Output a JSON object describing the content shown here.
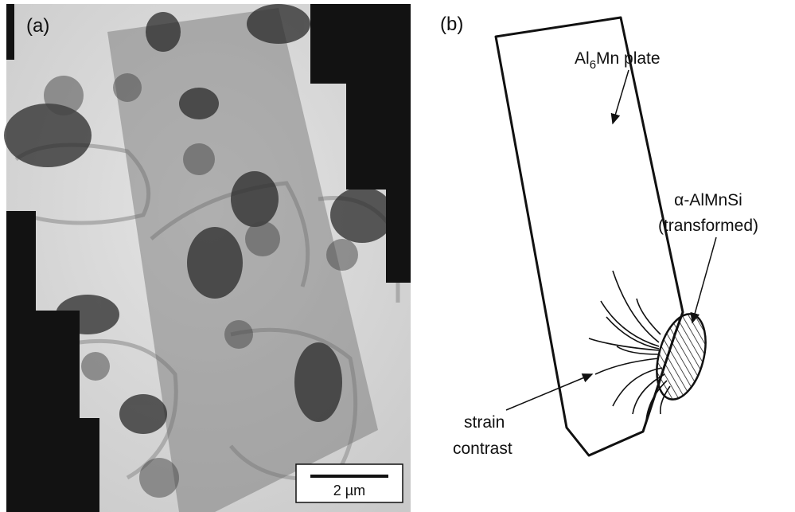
{
  "panel_a": {
    "label": "(a)",
    "scale_bar": "2 µm"
  },
  "panel_b": {
    "label": "(b)",
    "plate_label": {
      "base": "Al",
      "sub": "6",
      "rest": "Mn plate"
    },
    "phase_label": [
      "α-AlMnSi",
      "(transformed)"
    ],
    "strain_label": [
      "strain",
      "contrast"
    ]
  }
}
